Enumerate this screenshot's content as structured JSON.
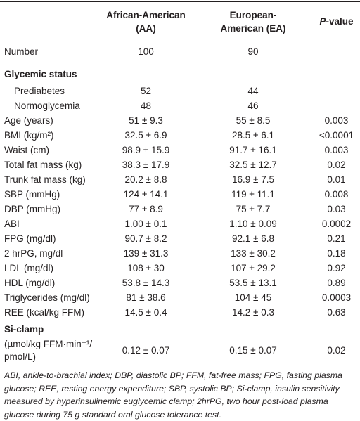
{
  "table": {
    "header": [
      "African-American (AA)",
      "European-American (EA)",
      "P-value"
    ],
    "rows": [
      {
        "label": "Number",
        "values": [
          "100",
          "90"
        ]
      },
      {
        "section": "Glycemic status",
        "indent": true,
        "rows": [
          {
            "label": "Prediabetes",
            "values": [
              "52",
              "44"
            ]
          },
          {
            "label": "Normoglycemia",
            "values": [
              "48",
              "46"
            ]
          }
        ]
      },
      {
        "label": "Age (years)",
        "values": [
          "51 ± 9.3",
          "55 ± 8.5",
          "0.003"
        ]
      },
      {
        "label": "BMI (kg/m²)",
        "values": [
          "32.5 ± 6.9",
          "28.5 ± 6.1",
          "<0.0001"
        ]
      },
      {
        "label": "Waist (cm)",
        "values": [
          "98.9 ± 15.9",
          "91.7 ± 16.1",
          "0.003"
        ]
      },
      {
        "label": "Total fat mass (kg)",
        "values": [
          "38.3 ± 17.9",
          "32.5 ± 12.7",
          "0.02"
        ]
      },
      {
        "label": "Trunk fat mass (kg)",
        "values": [
          "20.2 ± 8.8",
          "16.9 ± 7.5",
          "0.01"
        ]
      },
      {
        "label": "SBP (mmHg)",
        "values": [
          "124 ± 14.1",
          "119 ± 11.1",
          "0.008"
        ]
      },
      {
        "label": "DBP (mmHg)",
        "values": [
          "77 ± 8.9",
          "75 ± 7.7",
          "0.03"
        ]
      },
      {
        "label": "ABI",
        "values": [
          "1.00 ± 0.1",
          "1.10 ± 0.09",
          "0.0002"
        ]
      },
      {
        "label": "FPG (mg/dl)",
        "values": [
          "90.7 ± 8.2",
          "92.1 ± 6.8",
          "0.21"
        ]
      },
      {
        "label": "2 hrPG, mg/dl",
        "values": [
          "139 ± 31.3",
          "133 ± 30.2",
          "0.18"
        ]
      },
      {
        "label": "LDL (mg/dl)",
        "values": [
          "108 ± 30",
          "107 ± 29.2",
          "0.92"
        ]
      },
      {
        "label": "HDL (mg/dl)",
        "values": [
          "53.8 ± 14.3",
          "53.5 ± 13.1",
          "0.89"
        ]
      },
      {
        "label": "Triglycerides (mg/dl)",
        "values": [
          "81 ± 38.6",
          "104 ± 45",
          "0.0003"
        ]
      },
      {
        "label": "REE (kcal/kg FFM)",
        "values": [
          "14.5 ± 0.4",
          "14.2 ± 0.3",
          "0.63"
        ]
      },
      {
        "section": "Si-clamp",
        "indent": false,
        "rows": [
          {
            "label": "(µmol/kg FFM·min⁻¹/ pmol/L)",
            "values": [
              "0.12 ± 0.07",
              "0.15 ± 0.07",
              "0.02"
            ]
          }
        ]
      }
    ],
    "footnote": "ABI, ankle-to-brachial index; DBP, diastolic BP; FFM, fat-free mass; FPG, fasting plasma glucose; REE, resting energy expenditure; SBP, systolic BP; Si-clamp, insulin sensitivity measured by hyperinsulinemic euglycemic clamp; 2hrPG, two hour post-load plasma glucose during 75 g standard oral glucose tolerance test."
  }
}
